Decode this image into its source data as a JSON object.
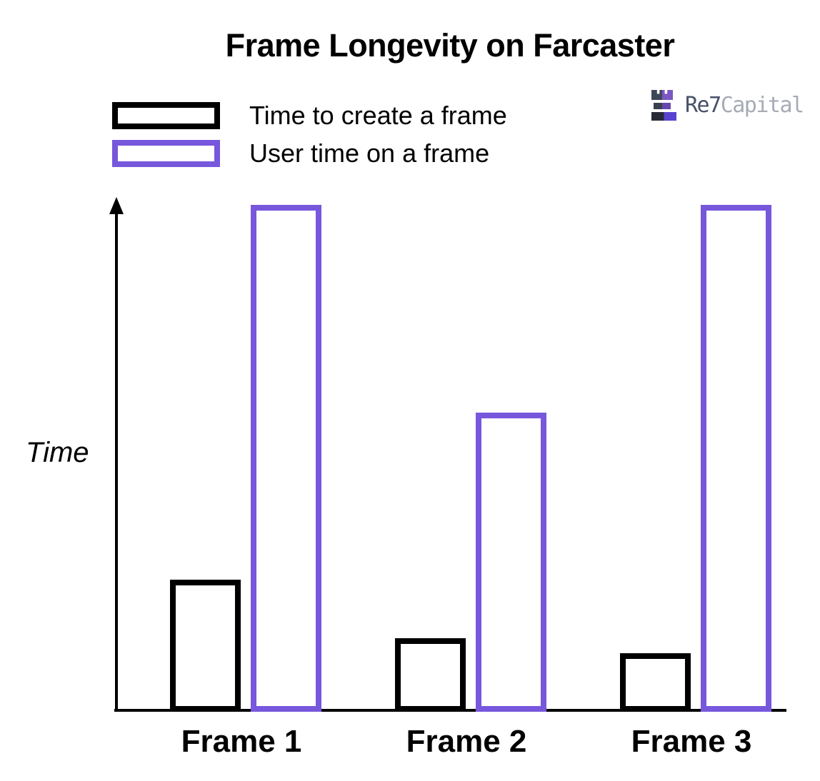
{
  "chart_data": {
    "type": "bar",
    "title": "Frame Longevity on Farcaster",
    "ylabel": "Time",
    "xlabel": "",
    "categories": [
      "Frame 1",
      "Frame 2",
      "Frame 3"
    ],
    "series": [
      {
        "name": "Time to create a frame",
        "color": "#000000",
        "values": [
          26,
          14.5,
          11.5
        ]
      },
      {
        "name": "User time on a frame",
        "color": "#7757DC",
        "values": [
          100,
          59,
          100
        ]
      }
    ],
    "ylim": [
      0,
      105
    ],
    "value_units": "relative (no numeric ticks shown)",
    "bar_style": "outlined",
    "grid": false,
    "legend_position": "top-left",
    "y_axis_arrow": true
  },
  "colors": {
    "series_create": "#000000",
    "series_user": "#7757DC",
    "logo_dark_left": [
      "#3E4757",
      "#394050",
      "#272B35"
    ],
    "logo_purple_right": [
      "#7B57C2",
      "#6847AC",
      "#5843D0"
    ],
    "logo_text_primary": "#475168",
    "logo_text_secondary": "#A6ABB5"
  },
  "logo": {
    "text_primary": "Re7",
    "text_secondary": "Capital"
  }
}
